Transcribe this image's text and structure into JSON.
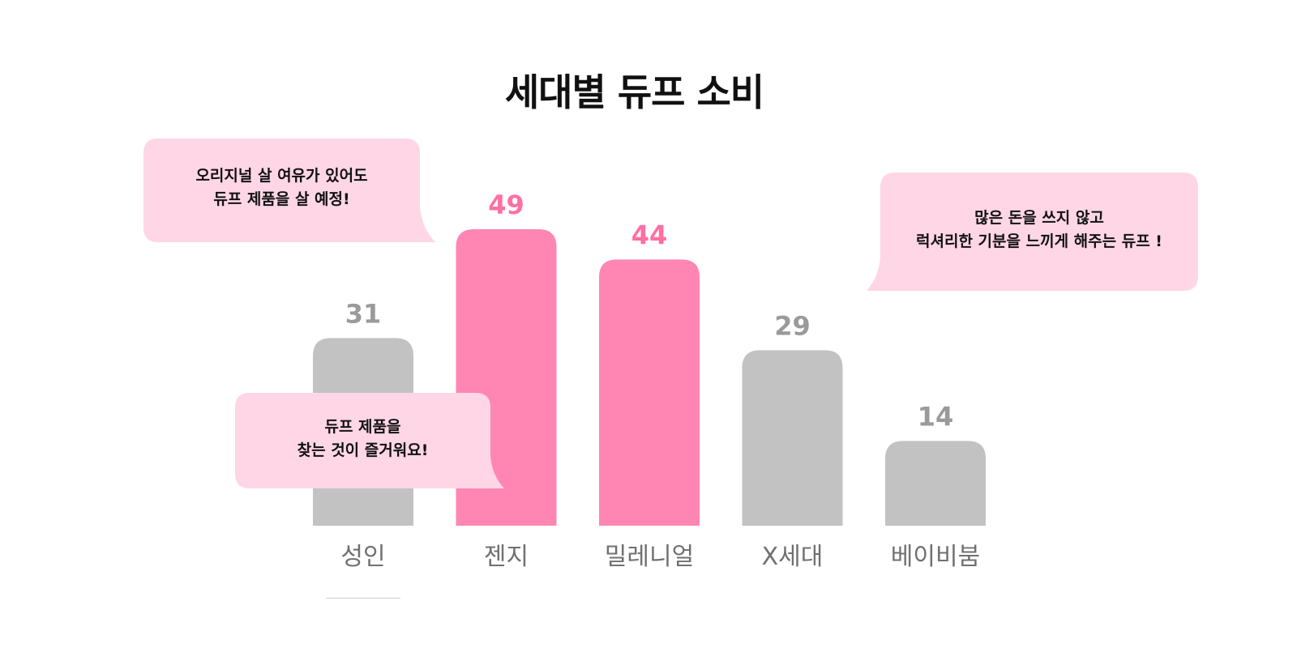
{
  "chart_data": {
    "type": "bar",
    "title": "세대별 듀프 소비",
    "categories": [
      "성인",
      "젠지",
      "밀레니얼",
      "X세대",
      "베이비붐"
    ],
    "values": [
      31,
      49,
      44,
      29,
      14
    ],
    "highlighted": [
      false,
      true,
      true,
      false,
      false
    ],
    "colors": {
      "default_bar": "#c2c2c2",
      "highlight_bar": "#ff86b3",
      "default_label": "#9a9a9a",
      "highlight_label": "#ff6fa3",
      "bubble": "#ffd6e6"
    },
    "ylim": [
      0,
      50
    ],
    "grid": false,
    "annotations": [
      {
        "lines": [
          "오리지널 살 여유가 있어도",
          "듀프 제품을 살 예정!"
        ]
      },
      {
        "lines": [
          "듀프 제품을",
          "찾는 것이 즐거워요!"
        ]
      },
      {
        "lines": [
          "많은 돈을 쓰지 않고",
          "럭셔리한 기분을 느끼게 해주는 듀프 !"
        ]
      }
    ]
  }
}
